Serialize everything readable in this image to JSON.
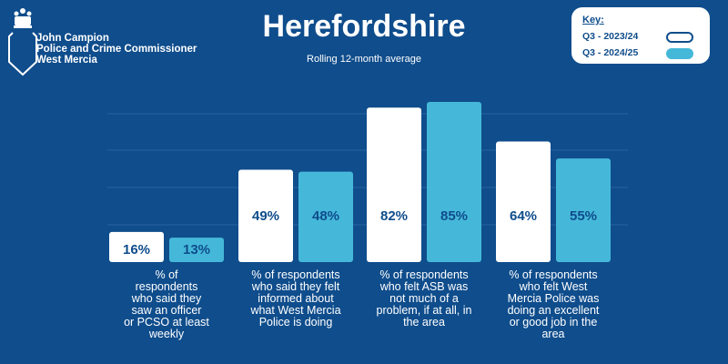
{
  "brand": {
    "line1": "John Campion",
    "line2": "Police and Crime Commissioner",
    "line3": "West Mercia"
  },
  "colors": {
    "background": "#0f4d8c",
    "series1": "#ffffff",
    "series2": "#45b8d9",
    "label_text": "#0f4d8c",
    "gridline": "#2a63a0"
  },
  "legend": {
    "title": "Key:",
    "items": [
      {
        "label": "Q3 - 2023/24"
      },
      {
        "label": "Q3 - 2024/25"
      }
    ]
  },
  "chart_data": {
    "type": "bar",
    "title": "Herefordshire",
    "subtitle": "Rolling 12-month average",
    "categories": [
      "% of respondents who said they saw an officer or PCSO at least weekly",
      "% of respondents who said they felt informed about what West Mercia Police is doing",
      "% of respondents who felt ASB was not much of a problem, if at all, in the area",
      "% of respondents who felt West Mercia Police was doing an excellent or good job in the area"
    ],
    "category_lines": [
      [
        "% of",
        "respondents",
        "who said they",
        "saw an officer",
        "or PCSO at least",
        "weekly"
      ],
      [
        "% of respondents",
        "who said they felt",
        "informed about",
        "what West Mercia",
        "Police is doing"
      ],
      [
        "% of respondents",
        "who felt ASB was",
        "not much of a",
        "problem, if at all, in",
        "the area"
      ],
      [
        "% of respondents",
        "who felt West",
        "Mercia Police was",
        "doing an excellent",
        "or good job in the",
        "area"
      ]
    ],
    "series": [
      {
        "name": "Q3 - 2023/24",
        "values": [
          16,
          49,
          82,
          64
        ]
      },
      {
        "name": "Q3 - 2024/25",
        "values": [
          13,
          48,
          85,
          55
        ]
      }
    ],
    "value_suffix": "%",
    "ylim": [
      0,
      100
    ],
    "grid": true,
    "xlabel": "",
    "ylabel": ""
  }
}
